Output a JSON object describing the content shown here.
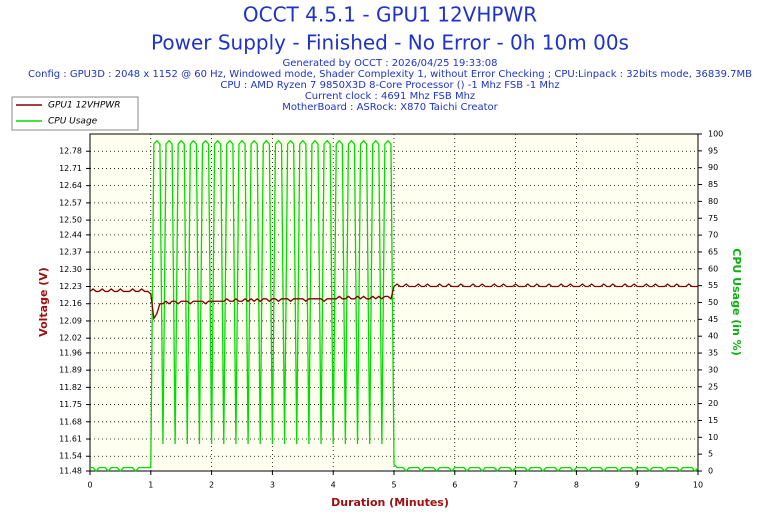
{
  "chart_data": {
    "type": "line",
    "title": "OCCT 4.5.1 - GPU1 12VHPWR",
    "subtitle": "Power Supply - Finished - No Error - 0h 10m 00s",
    "info_lines": [
      "Generated by OCCT : 2026/04/25 19:33:08",
      "Config : GPU3D : 2048 x 1152 @ 60 Hz, Windowed mode, Shader Complexity 1, without Error Checking ; CPU:Linpack : 32bits mode, 36839.7MB",
      "CPU : AMD Ryzen 7 9850X3D 8-Core Processor () -1 Mhz FSB -1 Mhz",
      "Current clock : 4691 Mhz FSB  Mhz",
      "MotherBoard : ASRock: X870 Taichi Creator"
    ],
    "xlabel": "Duration (Minutes)",
    "ylabel": "Voltage (V)",
    "y2label": "CPU Usage (in %)",
    "xlim": [
      0,
      10
    ],
    "xticks": [
      0,
      1,
      2,
      3,
      4,
      5,
      6,
      7,
      8,
      9,
      10
    ],
    "ylim": [
      11.48,
      12.85
    ],
    "yticks": [
      11.48,
      11.54,
      11.61,
      11.68,
      11.75,
      11.82,
      11.89,
      11.96,
      12.02,
      12.09,
      12.16,
      12.23,
      {
        "value": 12.3,
        "label": "12.30"
      },
      12.37,
      12.44,
      {
        "value": 12.5,
        "label": "12.50"
      },
      12.57,
      12.64,
      12.71,
      12.78
    ],
    "y2lim": [
      0,
      100
    ],
    "y2ticks": [
      0,
      5,
      10,
      15,
      20,
      25,
      30,
      35,
      40,
      45,
      50,
      55,
      60,
      65,
      70,
      75,
      80,
      85,
      90,
      95,
      100
    ],
    "grid": true,
    "legend": "top-left",
    "x": [
      0,
      0.05,
      0.1,
      0.15,
      0.2,
      0.25,
      0.3,
      0.35,
      0.4,
      0.45,
      0.5,
      0.55,
      0.6,
      0.65,
      0.7,
      0.75,
      0.8,
      0.85,
      0.9,
      0.95,
      1,
      1.05,
      1.1,
      1.15,
      1.2,
      1.25,
      1.3,
      1.35,
      1.4,
      1.45,
      1.5,
      1.55,
      1.6,
      1.65,
      1.7,
      1.75,
      1.8,
      1.85,
      1.9,
      1.95,
      2,
      2.05,
      2.1,
      2.15,
      2.2,
      2.25,
      2.3,
      2.35,
      2.4,
      2.45,
      2.5,
      2.55,
      2.6,
      2.65,
      2.7,
      2.75,
      2.8,
      2.85,
      2.9,
      2.95,
      3,
      3.05,
      3.1,
      3.15,
      3.2,
      3.25,
      3.3,
      3.35,
      3.4,
      3.45,
      3.5,
      3.55,
      3.6,
      3.65,
      3.7,
      3.75,
      3.8,
      3.85,
      3.9,
      3.95,
      4,
      4.05,
      4.1,
      4.15,
      4.2,
      4.25,
      4.3,
      4.35,
      4.4,
      4.45,
      4.5,
      4.55,
      4.6,
      4.65,
      4.7,
      4.75,
      4.8,
      4.85,
      4.9,
      4.95,
      5,
      5.05,
      5.1,
      5.15,
      5.2,
      5.25,
      5.3,
      5.35,
      5.4,
      5.45,
      5.5,
      5.55,
      5.6,
      5.65,
      5.7,
      5.75,
      5.8,
      5.85,
      5.9,
      5.95,
      6,
      6.05,
      6.1,
      6.15,
      6.2,
      6.25,
      6.3,
      6.35,
      6.4,
      6.45,
      6.5,
      6.55,
      6.6,
      6.65,
      6.7,
      6.75,
      6.8,
      6.85,
      6.9,
      6.95,
      7,
      7.05,
      7.1,
      7.15,
      7.2,
      7.25,
      7.3,
      7.35,
      7.4,
      7.45,
      7.5,
      7.55,
      7.6,
      7.65,
      7.7,
      7.75,
      7.8,
      7.85,
      7.9,
      7.95,
      8,
      8.05,
      8.1,
      8.15,
      8.2,
      8.25,
      8.3,
      8.35,
      8.4,
      8.45,
      8.5,
      8.55,
      8.6,
      8.65,
      8.7,
      8.75,
      8.8,
      8.85,
      8.9,
      8.95,
      9,
      9.05,
      9.1,
      9.15,
      9.2,
      9.25,
      9.3,
      9.35,
      9.4,
      9.45,
      9.5,
      9.55,
      9.6,
      9.65,
      9.7,
      9.75,
      9.8,
      9.85,
      9.9,
      9.95,
      10
    ],
    "series": [
      {
        "name": "GPU1 12VHPWR",
        "color": "#800000",
        "values": [
          12.21,
          12.22,
          12.21,
          12.21,
          12.22,
          12.21,
          12.21,
          12.22,
          12.21,
          12.21,
          12.22,
          12.21,
          12.21,
          12.21,
          12.22,
          12.21,
          12.21,
          12.22,
          12.21,
          12.21,
          12.2,
          12.1,
          12.12,
          12.16,
          12.16,
          12.17,
          12.16,
          12.17,
          12.17,
          12.16,
          12.17,
          12.17,
          12.17,
          12.16,
          12.17,
          12.17,
          12.17,
          12.17,
          12.16,
          12.17,
          12.17,
          12.17,
          12.17,
          12.17,
          12.17,
          12.18,
          12.17,
          12.17,
          12.18,
          12.17,
          12.17,
          12.18,
          12.17,
          12.18,
          12.17,
          12.18,
          12.17,
          12.18,
          12.18,
          12.17,
          12.18,
          12.18,
          12.17,
          12.18,
          12.18,
          12.18,
          12.17,
          12.18,
          12.18,
          12.18,
          12.18,
          12.17,
          12.18,
          12.18,
          12.18,
          12.18,
          12.18,
          12.17,
          12.18,
          12.18,
          12.18,
          12.18,
          12.19,
          12.18,
          12.18,
          12.19,
          12.18,
          12.18,
          12.19,
          12.18,
          12.19,
          12.18,
          12.18,
          12.19,
          12.18,
          12.19,
          12.18,
          12.19,
          12.19,
          12.18,
          12.23,
          12.24,
          12.23,
          12.23,
          12.24,
          12.23,
          12.23,
          12.23,
          12.24,
          12.23,
          12.23,
          12.24,
          12.23,
          12.23,
          12.23,
          12.24,
          12.23,
          12.23,
          12.24,
          12.23,
          12.23,
          12.23,
          12.24,
          12.23,
          12.23,
          12.23,
          12.24,
          12.23,
          12.23,
          12.24,
          12.23,
          12.23,
          12.23,
          12.24,
          12.23,
          12.23,
          12.24,
          12.23,
          12.23,
          12.23,
          12.24,
          12.23,
          12.23,
          12.23,
          12.24,
          12.23,
          12.23,
          12.24,
          12.23,
          12.23,
          12.23,
          12.24,
          12.23,
          12.23,
          12.23,
          12.24,
          12.23,
          12.23,
          12.24,
          12.23,
          12.23,
          12.23,
          12.24,
          12.23,
          12.23,
          12.24,
          12.23,
          12.23,
          12.23,
          12.24,
          12.23,
          12.23,
          12.24,
          12.23,
          12.23,
          12.23,
          12.24,
          12.23,
          12.23,
          12.24,
          12.23,
          12.23,
          12.23,
          12.24,
          12.23,
          12.23,
          12.24,
          12.23,
          12.23,
          12.23,
          12.24,
          12.23,
          12.23,
          12.24,
          12.23,
          12.23,
          12.23,
          12.24,
          12.23,
          12.23,
          12.23
        ]
      },
      {
        "name": "CPU Usage",
        "color": "#00dd00",
        "axis": "y2",
        "values": [
          1,
          1,
          0,
          1,
          1,
          1,
          0,
          1,
          1,
          1,
          0,
          1,
          1,
          1,
          1,
          0,
          1,
          1,
          1,
          1,
          1,
          97,
          98,
          97,
          8,
          97,
          98,
          97,
          8,
          97,
          98,
          97,
          8,
          97,
          98,
          97,
          8,
          97,
          98,
          97,
          8,
          97,
          98,
          97,
          8,
          97,
          98,
          97,
          8,
          97,
          98,
          97,
          8,
          97,
          98,
          97,
          8,
          97,
          98,
          97,
          8,
          97,
          98,
          97,
          8,
          97,
          98,
          97,
          8,
          97,
          98,
          97,
          8,
          97,
          98,
          97,
          8,
          97,
          98,
          97,
          8,
          97,
          98,
          97,
          8,
          97,
          98,
          97,
          8,
          97,
          98,
          97,
          8,
          97,
          98,
          97,
          8,
          97,
          98,
          97,
          2,
          1,
          1,
          1,
          0,
          1,
          1,
          1,
          1,
          0,
          1,
          1,
          1,
          1,
          0,
          1,
          1,
          1,
          1,
          0,
          1,
          1,
          1,
          1,
          0,
          1,
          1,
          1,
          1,
          0,
          1,
          1,
          1,
          1,
          0,
          1,
          1,
          1,
          1,
          0,
          1,
          1,
          1,
          1,
          0,
          1,
          1,
          1,
          1,
          0,
          1,
          1,
          1,
          1,
          0,
          1,
          1,
          1,
          1,
          0,
          1,
          1,
          1,
          1,
          0,
          1,
          1,
          1,
          1,
          0,
          1,
          1,
          1,
          1,
          0,
          1,
          1,
          1,
          1,
          0,
          1,
          1,
          1,
          1,
          0,
          1,
          1,
          1,
          1,
          0,
          1,
          1,
          1,
          1,
          0,
          1,
          1,
          1,
          1,
          0,
          1
        ]
      }
    ]
  }
}
